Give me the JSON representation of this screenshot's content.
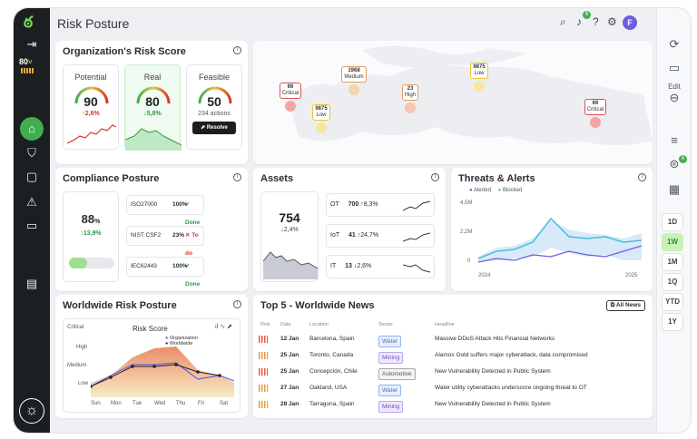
{
  "page_title": "Risk Posture",
  "nav": {
    "score": "80",
    "score_arrow": "˅"
  },
  "topbar": {
    "notif_count": "6",
    "avatar": "F"
  },
  "rightbar": {
    "edit_label": "Edit",
    "notif_count": "6",
    "ranges": [
      "1D",
      "1W",
      "1M",
      "1Q",
      "YTD",
      "1Y"
    ],
    "active_range": "1W"
  },
  "risk_score": {
    "title": "Organization's Risk Score",
    "potential": {
      "label": "Potential",
      "value": "90",
      "change": "↑2,6%"
    },
    "real": {
      "label": "Real",
      "value": "80",
      "change": "↓5,8%"
    },
    "feasible": {
      "label": "Feasible",
      "value": "50",
      "actions": "234 actions",
      "button": "Resolve"
    }
  },
  "map": {
    "pins": [
      {
        "value": "66",
        "label": "Critical"
      },
      {
        "value": "9875",
        "label": "Low"
      },
      {
        "value": "1968",
        "label": "Medium"
      },
      {
        "value": "23",
        "label": "High"
      },
      {
        "value": "9875",
        "label": "Low"
      },
      {
        "value": "66",
        "label": "Critical"
      }
    ]
  },
  "compliance": {
    "title": "Compliance Posture",
    "value": "88",
    "unit": "%",
    "change": "↑13,9%",
    "standards": [
      {
        "name": "ISO27000",
        "pct": "100%",
        "status": "✓ Done"
      },
      {
        "name": "NIST CSF2",
        "pct": "23%",
        "status": "✕ To do"
      },
      {
        "name": "IEC62443",
        "pct": "100%",
        "status": "✓ Done"
      }
    ]
  },
  "assets": {
    "title": "Assets",
    "total": "754",
    "change": "↓2,4%",
    "rows": [
      {
        "name": "OT",
        "count": "700",
        "change": "↑8,3%"
      },
      {
        "name": "IoT",
        "count": "41",
        "change": "↑24,7%"
      },
      {
        "name": "IT",
        "count": "13",
        "change": "↓2,6%"
      }
    ]
  },
  "threats": {
    "title": "Threats & Alerts",
    "legend": [
      "Alerted",
      "Blocked"
    ],
    "yticks": [
      "4,5M",
      "2,2M",
      "0"
    ],
    "xticks": [
      "2024",
      "2025"
    ]
  },
  "worldwide": {
    "title": "Worldwide Risk Posture",
    "chart_title": "Risk Score",
    "levels": [
      "Critical",
      "High",
      "Medium",
      "Low"
    ],
    "days": [
      "Sun",
      "Mon",
      "Tue",
      "Wed",
      "Thu",
      "Fri",
      "Sat"
    ],
    "legend": [
      "Organization",
      "Worldwide"
    ]
  },
  "news": {
    "title": "Top 5 - Worldwide News",
    "button": "All News",
    "headers": [
      "Risk",
      "Date",
      "Location",
      "Sector",
      "Headline"
    ],
    "rows": [
      {
        "date": "12 Jan",
        "location": "Barcelona, Spain",
        "sector": "Water",
        "headline": "Massive DDoS Attack Hits Financial Networks"
      },
      {
        "date": "25 Jan",
        "location": "Toronto, Canada",
        "sector": "Mining",
        "headline": "Alamos Gold suffers major cyberattack, data compromised"
      },
      {
        "date": "25 Jan",
        "location": "Concepción, Chile",
        "sector": "Automotive",
        "headline": "New Vulnerability Detected in Public System"
      },
      {
        "date": "27 Jan",
        "location": "Oakland, USA",
        "sector": "Water",
        "headline": "Water utility cyberattacks underscore ongoing threat to OT"
      },
      {
        "date": "28 Jan",
        "location": "Tarragona, Spain",
        "sector": "Mining",
        "headline": "New Vulnerability Detected in Public System"
      }
    ]
  }
}
